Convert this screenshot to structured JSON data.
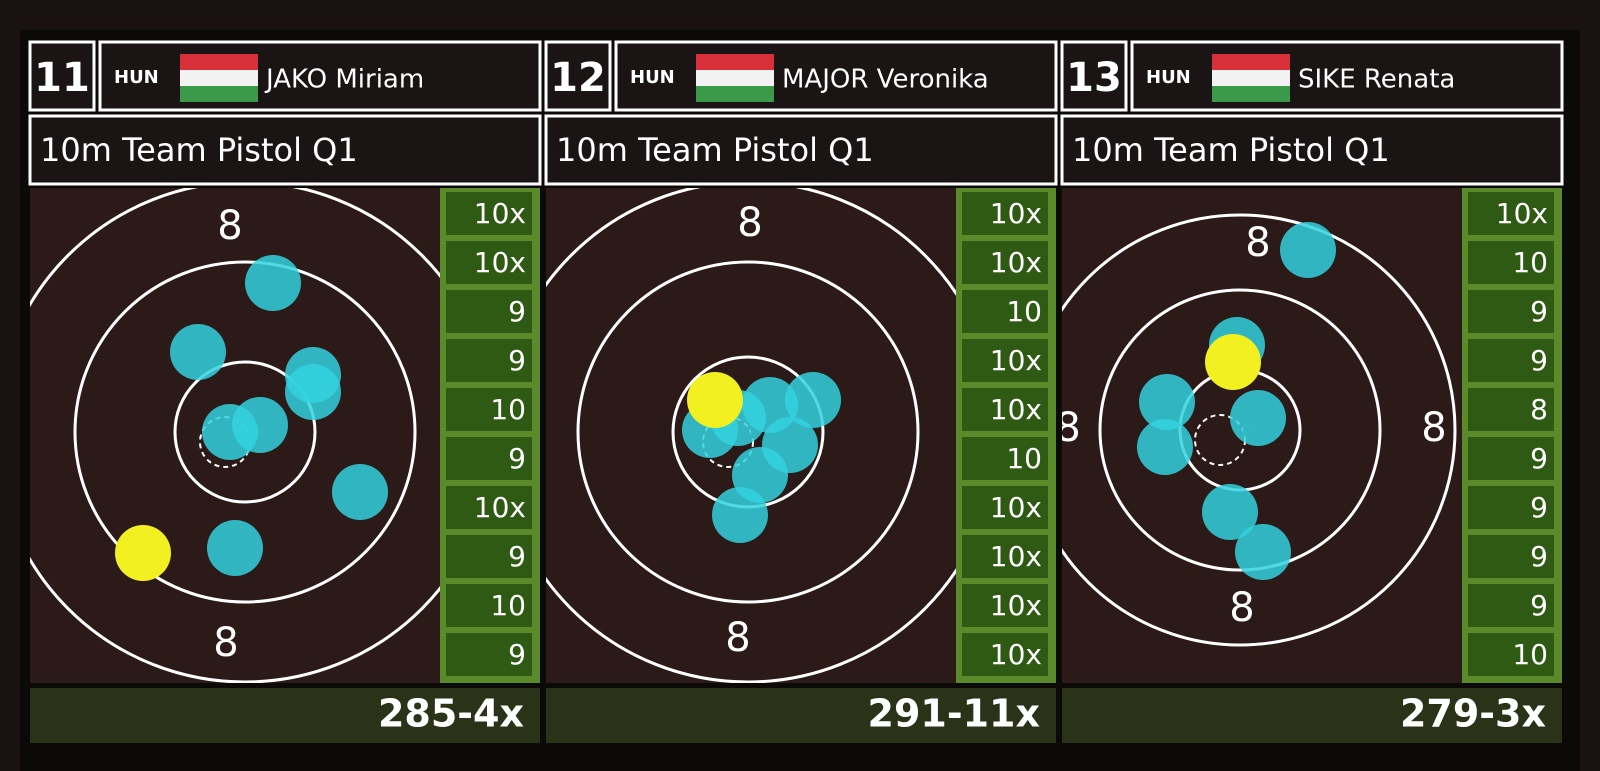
{
  "panels": [
    {
      "lane": "11",
      "nation": "HUN",
      "athlete": "JAKO Miriam",
      "event": "10m Team Pistol Q1",
      "ring_labels": [
        "8",
        "8"
      ],
      "scores": [
        "10x",
        "10x",
        "9",
        "9",
        "10",
        "9",
        "10x",
        "9",
        "10",
        "9"
      ],
      "total": "285-4x"
    },
    {
      "lane": "12",
      "nation": "HUN",
      "athlete": "MAJOR Veronika",
      "event": "10m Team Pistol Q1",
      "ring_labels": [
        "8",
        "8"
      ],
      "scores": [
        "10x",
        "10x",
        "10",
        "10x",
        "10x",
        "10",
        "10x",
        "10x",
        "10x",
        "10x"
      ],
      "total": "291-11x"
    },
    {
      "lane": "13",
      "nation": "HUN",
      "athlete": "SIKE Renata",
      "event": "10m Team Pistol Q1",
      "ring_labels": [
        "8",
        "8",
        "8",
        "8"
      ],
      "scores": [
        "10x",
        "10",
        "9",
        "9",
        "8",
        "9",
        "9",
        "9",
        "9",
        "10"
      ],
      "total": "279-3x"
    }
  ]
}
